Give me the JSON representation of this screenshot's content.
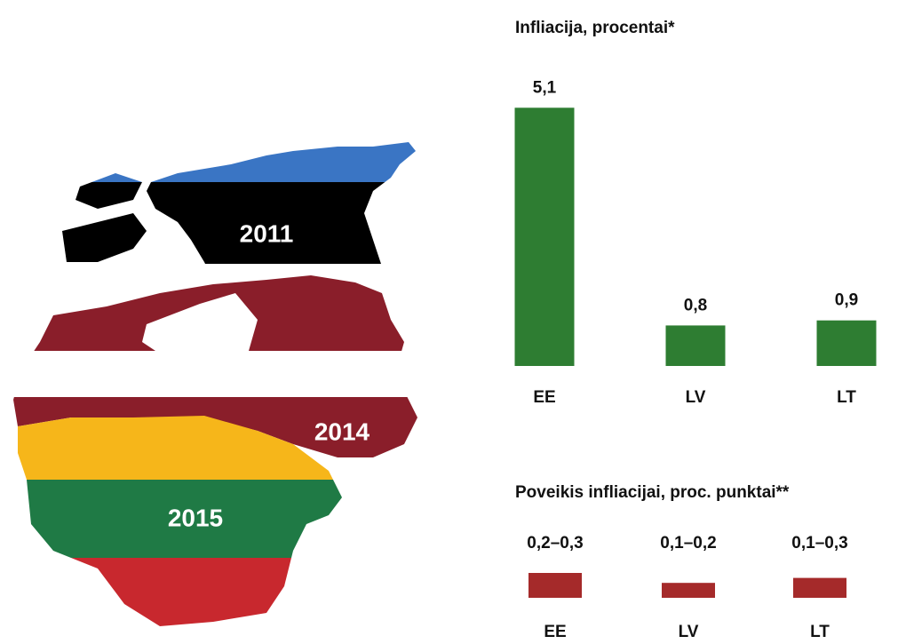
{
  "map": {
    "labels": [
      "2011",
      "2014",
      "2015"
    ]
  },
  "chart_data": [
    {
      "type": "bar",
      "title": "Infliacija, procentai*",
      "categories": [
        "EE",
        "LV",
        "LT"
      ],
      "values": [
        5.1,
        0.8,
        0.9
      ],
      "value_labels": [
        "5,1",
        "0,8",
        "0,9"
      ],
      "color": "#2e7d32"
    },
    {
      "type": "range_bar",
      "title": "Poveikis infliacijai, proc. punktai**",
      "categories": [
        "EE",
        "LV",
        "LT"
      ],
      "low": [
        0.2,
        0.1,
        0.1
      ],
      "high": [
        0.3,
        0.2,
        0.3
      ],
      "value_labels": [
        "0,2–0,3",
        "0,1–0,2",
        "0,1–0,3"
      ],
      "color": "#a52a2a"
    }
  ]
}
